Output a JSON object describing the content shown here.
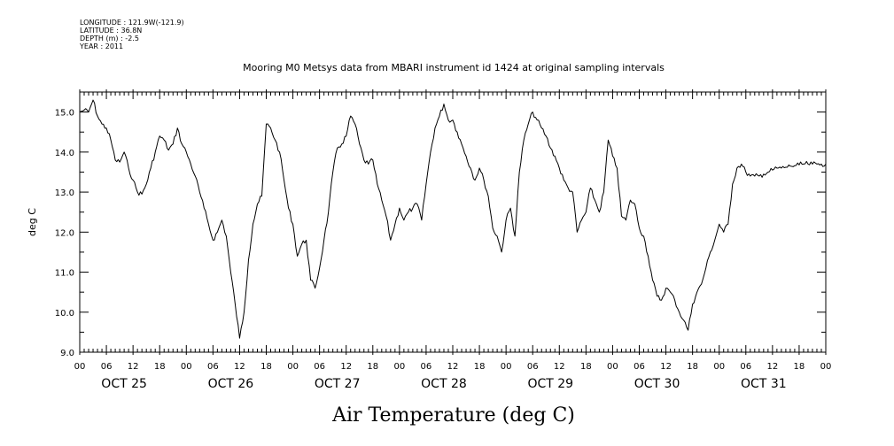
{
  "header": {
    "longitude": "LONGITUDE : 121.9W(-121.9)",
    "latitude": "LATITUDE : 36.8N",
    "depth": "DEPTH (m) : -2.5",
    "year": "YEAR : 2011"
  },
  "chart_data": {
    "type": "line",
    "title": "Mooring M0 Metsys data from MBARI instrument id 1424 at original sampling intervals",
    "xlabel": "Air Temperature (deg C)",
    "ylabel": "deg C",
    "ylim": [
      9.0,
      15.5
    ],
    "yticks": [
      9.0,
      10.0,
      11.0,
      12.0,
      13.0,
      14.0,
      15.0
    ],
    "ytick_labels": [
      "9.0",
      "10.0",
      "11.0",
      "12.0",
      "13.0",
      "14.0",
      "15.0"
    ],
    "xlim_hours": [
      0,
      168
    ],
    "hour_tick_labels": [
      "00",
      "06",
      "12",
      "18",
      "00",
      "06",
      "12",
      "18",
      "00",
      "06",
      "12",
      "18",
      "00",
      "06",
      "12",
      "18",
      "00",
      "06",
      "12",
      "18",
      "00",
      "06",
      "12",
      "18",
      "00",
      "06",
      "12",
      "18",
      "00"
    ],
    "day_labels": [
      "OCT 25",
      "OCT 26",
      "OCT 27",
      "OCT 28",
      "OCT 29",
      "OCT 30",
      "OCT 31"
    ],
    "grid": false,
    "series": [
      {
        "name": "",
        "color": "#000000",
        "x": [
          0,
          1,
          2,
          3,
          4,
          5,
          6,
          7,
          8,
          9,
          10,
          11,
          12,
          13,
          14,
          15,
          16,
          17,
          18,
          19,
          20,
          21,
          22,
          23,
          24,
          25,
          26,
          27,
          28,
          29,
          30,
          31,
          32,
          33,
          34,
          35,
          36,
          37,
          38,
          39,
          40,
          41,
          42,
          43,
          44,
          45,
          46,
          47,
          48,
          49,
          50,
          51,
          52,
          53,
          54,
          55,
          56,
          57,
          58,
          59,
          60,
          61,
          62,
          63,
          64,
          65,
          66,
          67,
          68,
          69,
          70,
          71,
          72,
          73,
          74,
          75,
          76,
          77,
          78,
          79,
          80,
          81,
          82,
          83,
          84,
          85,
          86,
          87,
          88,
          89,
          90,
          91,
          92,
          93,
          94,
          95,
          96,
          97,
          98,
          99,
          100,
          101,
          102,
          103,
          104,
          105,
          106,
          107,
          108,
          109,
          110,
          111,
          112,
          113,
          114,
          115,
          116,
          117,
          118,
          119,
          120,
          121,
          122,
          123,
          124,
          125,
          126,
          127,
          128,
          129,
          130,
          131,
          132,
          133,
          134,
          135,
          136,
          137,
          138,
          139,
          140,
          141,
          142,
          143,
          144,
          145,
          146,
          147,
          148,
          149,
          150,
          151,
          152,
          153,
          154,
          155,
          156,
          157,
          158,
          159,
          160,
          161,
          162,
          163,
          164,
          165,
          166,
          167,
          168
        ],
        "y": [
          15.0,
          15.05,
          15.0,
          15.3,
          14.9,
          14.7,
          14.6,
          14.3,
          13.8,
          13.75,
          14.0,
          13.6,
          13.3,
          13.0,
          12.95,
          13.2,
          13.6,
          14.0,
          14.4,
          14.3,
          14.05,
          14.2,
          14.6,
          14.2,
          14.0,
          13.7,
          13.4,
          13.0,
          12.6,
          12.2,
          11.8,
          12.0,
          12.3,
          11.9,
          11.0,
          10.2,
          9.35,
          10.0,
          11.3,
          12.2,
          12.7,
          12.9,
          14.7,
          14.6,
          14.3,
          14.0,
          13.3,
          12.6,
          12.2,
          11.4,
          11.7,
          11.8,
          10.8,
          10.6,
          11.1,
          11.8,
          12.5,
          13.5,
          14.1,
          14.2,
          14.4,
          14.9,
          14.7,
          14.2,
          13.8,
          13.7,
          13.8,
          13.2,
          12.8,
          12.4,
          11.8,
          12.2,
          12.6,
          12.3,
          12.5,
          12.6,
          12.7,
          12.3,
          13.2,
          14.0,
          14.6,
          14.9,
          15.2,
          14.8,
          14.8,
          14.5,
          14.2,
          13.9,
          13.6,
          13.3,
          13.6,
          13.3,
          12.9,
          12.1,
          11.9,
          11.5,
          12.3,
          12.6,
          11.9,
          13.5,
          14.3,
          14.7,
          15.0,
          14.8,
          14.6,
          14.4,
          14.1,
          13.9,
          13.6,
          13.3,
          13.1,
          13.0,
          12.0,
          12.3,
          12.5,
          13.1,
          12.8,
          12.5,
          13.0,
          14.3,
          13.9,
          13.6,
          12.4,
          12.3,
          12.8,
          12.7,
          12.1,
          11.9,
          11.4,
          10.8,
          10.4,
          10.3,
          10.6,
          10.5,
          10.3,
          10.0,
          9.8,
          9.55,
          10.2,
          10.5,
          10.7,
          11.1,
          11.5,
          11.8,
          12.2,
          12.0,
          12.2,
          13.2,
          13.6,
          13.7,
          13.5,
          13.4,
          13.4,
          13.4,
          13.45,
          13.5,
          13.55,
          13.6,
          13.6,
          13.62,
          13.65,
          13.66,
          13.68,
          13.7,
          13.7,
          13.7,
          13.7,
          13.7,
          13.7
        ]
      }
    ]
  }
}
